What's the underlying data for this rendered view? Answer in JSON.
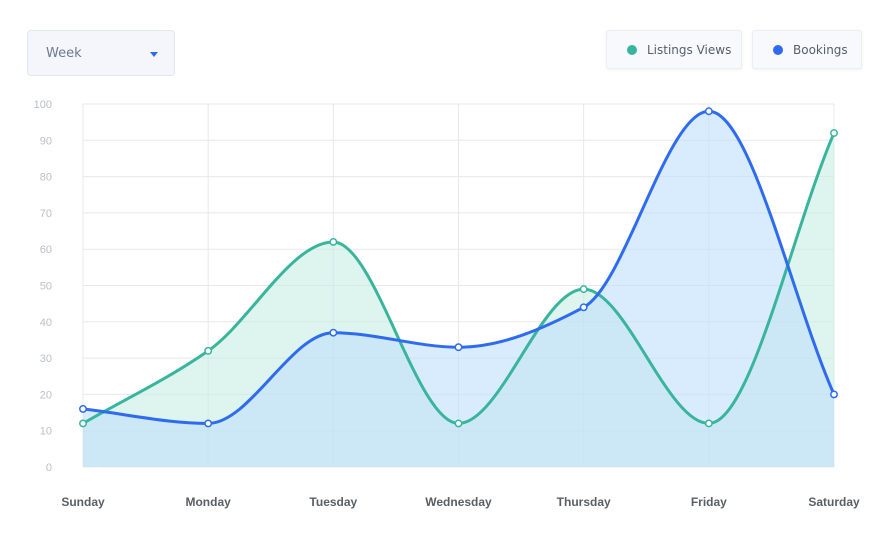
{
  "controls": {
    "period_selected": "Week"
  },
  "legend": {
    "items": [
      {
        "label": "Listings Views",
        "color": "#3ab59d"
      },
      {
        "label": "Bookings",
        "color": "#2f6bef"
      }
    ]
  },
  "chart_data": {
    "type": "line",
    "title": "",
    "xlabel": "",
    "ylabel": "",
    "categories": [
      "Sunday",
      "Monday",
      "Tuesday",
      "Wednesday",
      "Thursday",
      "Friday",
      "Saturday"
    ],
    "series": [
      {
        "name": "Listings Views",
        "values": [
          12,
          32,
          62,
          12,
          49,
          12,
          92
        ],
        "color": "#3ab59d",
        "fill": "#c8ece2"
      },
      {
        "name": "Bookings",
        "values": [
          16,
          12,
          37,
          33,
          44,
          98,
          20
        ],
        "color": "#2f6bef",
        "fill": "#bfe0fb"
      }
    ],
    "ylim": [
      0,
      100
    ],
    "yticks": [
      0,
      10,
      20,
      30,
      40,
      50,
      60,
      70,
      80,
      90,
      100
    ],
    "grid": true,
    "smooth": true,
    "filled": true,
    "legend_position": "top-right"
  }
}
